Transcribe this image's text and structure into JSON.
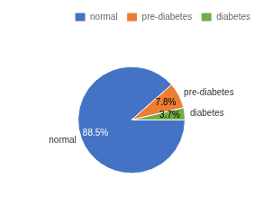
{
  "chart_data": {
    "type": "pie",
    "categories": [
      "normal",
      "pre-diabetes",
      "diabetes"
    ],
    "values": [
      88.5,
      7.8,
      3.7
    ],
    "value_labels": [
      "88.5%",
      "7.8%",
      "3.7%"
    ],
    "colors": [
      "#4472c4",
      "#ed7d31",
      "#70ad47"
    ],
    "data_labels": true,
    "legend": "upper right",
    "annotations": [
      "normal",
      "pre-diabetes",
      "diabetes"
    ]
  }
}
